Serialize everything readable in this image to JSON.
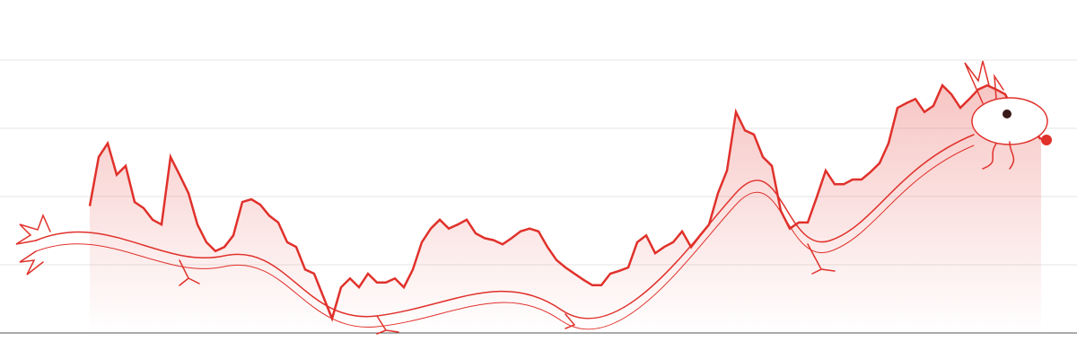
{
  "chart_data": {
    "type": "line",
    "color": "#e0312b",
    "ylim": [
      0,
      4
    ],
    "yticks": [
      0,
      1,
      2,
      3,
      4
    ],
    "grid": true,
    "values": [
      1.86,
      2.58,
      2.78,
      2.32,
      2.45,
      1.92,
      1.83,
      1.66,
      1.59,
      2.58,
      2.32,
      2.05,
      1.59,
      1.33,
      1.2,
      1.26,
      1.43,
      1.92,
      1.96,
      1.88,
      1.72,
      1.62,
      1.33,
      1.26,
      0.93,
      0.87,
      0.54,
      0.21,
      0.67,
      0.8,
      0.67,
      0.87,
      0.74,
      0.74,
      0.8,
      0.67,
      0.93,
      1.33,
      1.53,
      1.66,
      1.53,
      1.59,
      1.66,
      1.46,
      1.39,
      1.36,
      1.3,
      1.39,
      1.49,
      1.53,
      1.49,
      1.26,
      1.07,
      0.96,
      0.87,
      0.78,
      0.7,
      0.7,
      0.87,
      0.91,
      0.96,
      1.33,
      1.43,
      1.17,
      1.26,
      1.33,
      1.49,
      1.26,
      1.43,
      1.59,
      2.05,
      2.38,
      3.24,
      2.97,
      2.91,
      2.58,
      2.45,
      1.79,
      1.53,
      1.62,
      1.62,
      1.99,
      2.38,
      2.18,
      2.18,
      2.25,
      2.25,
      2.36,
      2.49,
      2.78,
      3.3,
      3.37,
      3.43,
      3.24,
      3.33,
      3.63,
      3.5,
      3.3,
      3.43,
      3.57,
      3.63,
      3.57,
      3.5,
      3.24,
      3.04,
      2.97,
      2.84
    ]
  }
}
